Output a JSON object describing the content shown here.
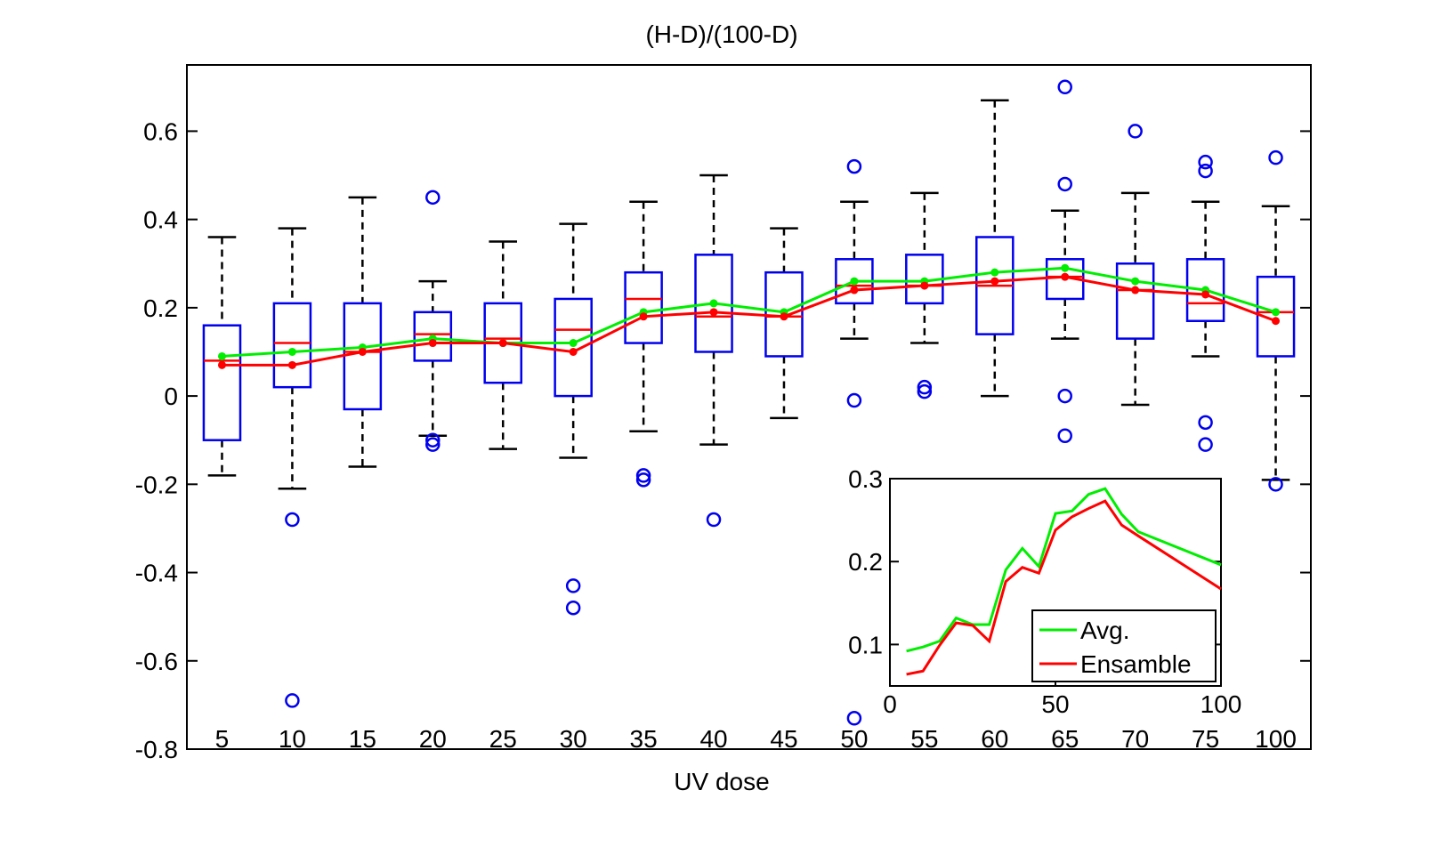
{
  "chart_data": [
    {
      "type": "box",
      "title": "(H-D)/(100-D)",
      "xlabel": "UV dose",
      "ylabel": "",
      "ylim": [
        -0.8,
        0.75
      ],
      "yticks": [
        -0.8,
        -0.6,
        -0.4,
        -0.2,
        0,
        0.2,
        0.4,
        0.6
      ],
      "ytick_labels": [
        "-0.8",
        "-0.6",
        "-0.4",
        "-0.2",
        "0",
        "0.2",
        "0.4",
        "0.6"
      ],
      "categories": [
        "5",
        "10",
        "15",
        "20",
        "25",
        "30",
        "35",
        "40",
        "45",
        "50",
        "55",
        "60",
        "65",
        "70",
        "75",
        "100"
      ],
      "boxes": [
        {
          "q1": -0.1,
          "median": 0.08,
          "q3": 0.16,
          "whisker_low": -0.18,
          "whisker_high": 0.36,
          "outliers": []
        },
        {
          "q1": 0.02,
          "median": 0.12,
          "q3": 0.21,
          "whisker_low": -0.21,
          "whisker_high": 0.38,
          "outliers": [
            -0.28,
            -0.69
          ]
        },
        {
          "q1": -0.03,
          "median": 0.1,
          "q3": 0.21,
          "whisker_low": -0.16,
          "whisker_high": 0.45,
          "outliers": []
        },
        {
          "q1": 0.08,
          "median": 0.14,
          "q3": 0.19,
          "whisker_low": -0.09,
          "whisker_high": 0.26,
          "outliers": [
            0.45,
            -0.1,
            -0.11
          ]
        },
        {
          "q1": 0.03,
          "median": 0.13,
          "q3": 0.21,
          "whisker_low": -0.12,
          "whisker_high": 0.35,
          "outliers": []
        },
        {
          "q1": 0.0,
          "median": 0.15,
          "q3": 0.22,
          "whisker_low": -0.14,
          "whisker_high": 0.39,
          "outliers": [
            -0.43,
            -0.48
          ]
        },
        {
          "q1": 0.12,
          "median": 0.22,
          "q3": 0.28,
          "whisker_low": -0.08,
          "whisker_high": 0.44,
          "outliers": [
            -0.18,
            -0.19
          ]
        },
        {
          "q1": 0.1,
          "median": 0.18,
          "q3": 0.32,
          "whisker_low": -0.11,
          "whisker_high": 0.5,
          "outliers": [
            -0.28
          ]
        },
        {
          "q1": 0.09,
          "median": 0.18,
          "q3": 0.28,
          "whisker_low": -0.05,
          "whisker_high": 0.38,
          "outliers": []
        },
        {
          "q1": 0.21,
          "median": 0.25,
          "q3": 0.31,
          "whisker_low": 0.13,
          "whisker_high": 0.44,
          "outliers": [
            0.52,
            -0.01,
            -0.73
          ]
        },
        {
          "q1": 0.21,
          "median": 0.25,
          "q3": 0.32,
          "whisker_low": 0.12,
          "whisker_high": 0.46,
          "outliers": [
            0.02,
            0.01
          ]
        },
        {
          "q1": 0.14,
          "median": 0.25,
          "q3": 0.36,
          "whisker_low": 0.0,
          "whisker_high": 0.67,
          "outliers": []
        },
        {
          "q1": 0.22,
          "median": 0.27,
          "q3": 0.31,
          "whisker_low": 0.13,
          "whisker_high": 0.42,
          "outliers": [
            0.7,
            0.48,
            0.0,
            -0.09
          ]
        },
        {
          "q1": 0.13,
          "median": 0.24,
          "q3": 0.3,
          "whisker_low": -0.02,
          "whisker_high": 0.46,
          "outliers": [
            0.6
          ]
        },
        {
          "q1": 0.17,
          "median": 0.21,
          "q3": 0.31,
          "whisker_low": 0.09,
          "whisker_high": 0.44,
          "outliers": [
            0.53,
            0.51,
            -0.06,
            -0.11
          ]
        },
        {
          "q1": 0.09,
          "median": 0.19,
          "q3": 0.27,
          "whisker_low": -0.19,
          "whisker_high": 0.43,
          "outliers": [
            0.54,
            -0.2
          ]
        }
      ],
      "series": [
        {
          "values": [
            0.09,
            0.1,
            0.11,
            0.13,
            0.12,
            0.12,
            0.19,
            0.21,
            0.19,
            0.26,
            0.26,
            0.28,
            0.29,
            0.26,
            0.24,
            0.19
          ],
          "color": "#00ee00"
        },
        {
          "values": [
            0.07,
            0.07,
            0.1,
            0.12,
            0.12,
            0.1,
            0.18,
            0.19,
            0.18,
            0.24,
            0.25,
            0.26,
            0.27,
            0.24,
            0.23,
            0.17
          ],
          "color": "#ff0000"
        }
      ],
      "colors": {
        "box": "#0000ee",
        "median": "#ff0000",
        "whisker": "#000000",
        "outlier": "#0000ee"
      }
    },
    {
      "type": "line",
      "title": "",
      "xlabel": "",
      "ylabel": "",
      "xlim": [
        0,
        100
      ],
      "ylim": [
        0.05,
        0.3
      ],
      "xticks": [
        0,
        50,
        100
      ],
      "yticks": [
        0.1,
        0.2,
        0.3
      ],
      "xtick_labels": [
        "0",
        "50",
        "100"
      ],
      "ytick_labels": [
        "0.1",
        "0.2",
        "0.3"
      ],
      "legend_position": "bottom-right",
      "x": [
        5,
        10,
        15,
        20,
        25,
        30,
        35,
        40,
        45,
        50,
        55,
        60,
        65,
        70,
        75,
        100
      ],
      "series": [
        {
          "name": "Avg.",
          "values": [
            0.092,
            0.097,
            0.104,
            0.132,
            0.124,
            0.124,
            0.19,
            0.216,
            0.194,
            0.258,
            0.261,
            0.281,
            0.288,
            0.257,
            0.236,
            0.196
          ],
          "color": "#00ee00"
        },
        {
          "name": "Ensamble",
          "values": [
            0.064,
            0.068,
            0.099,
            0.126,
            0.123,
            0.104,
            0.176,
            0.193,
            0.186,
            0.238,
            0.254,
            0.264,
            0.273,
            0.244,
            0.231,
            0.167
          ],
          "color": "#ff0000"
        }
      ]
    }
  ]
}
